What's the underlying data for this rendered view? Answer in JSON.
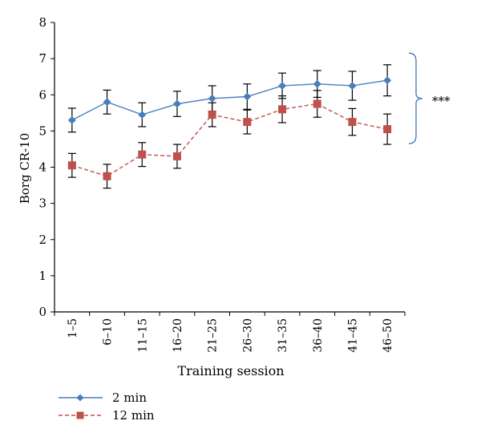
{
  "chart_data": {
    "type": "line",
    "xlabel": "Training session",
    "ylabel": "Borg CR-10",
    "ylim": [
      0,
      8
    ],
    "yticks": [
      0,
      1,
      2,
      3,
      4,
      5,
      6,
      7,
      8
    ],
    "grid": false,
    "legend_position": "bottom-left",
    "categories": [
      "1–5",
      "6–10",
      "11–15",
      "16–20",
      "21–25",
      "26–30",
      "31–35",
      "36–40",
      "41–45",
      "46–50"
    ],
    "series": [
      {
        "name": "2 min",
        "color": "#4a7ebb",
        "marker": "diamond",
        "line_style": "solid",
        "values": [
          5.3,
          5.8,
          5.45,
          5.75,
          5.9,
          5.95,
          6.25,
          6.3,
          6.25,
          6.4
        ],
        "error": [
          0.33,
          0.33,
          0.33,
          0.35,
          0.35,
          0.35,
          0.35,
          0.37,
          0.4,
          0.43
        ]
      },
      {
        "name": "12 min",
        "color": "#c0504d",
        "marker": "square",
        "line_style": "dashed",
        "values": [
          4.05,
          3.75,
          4.35,
          4.3,
          5.45,
          5.25,
          5.6,
          5.75,
          5.25,
          5.05
        ],
        "error": [
          0.33,
          0.33,
          0.33,
          0.33,
          0.33,
          0.33,
          0.37,
          0.37,
          0.37,
          0.42
        ]
      }
    ],
    "annotation": {
      "text": "***",
      "bracket_range": [
        4.65,
        7.15
      ],
      "bracket_color": "#4a7ebb"
    }
  }
}
